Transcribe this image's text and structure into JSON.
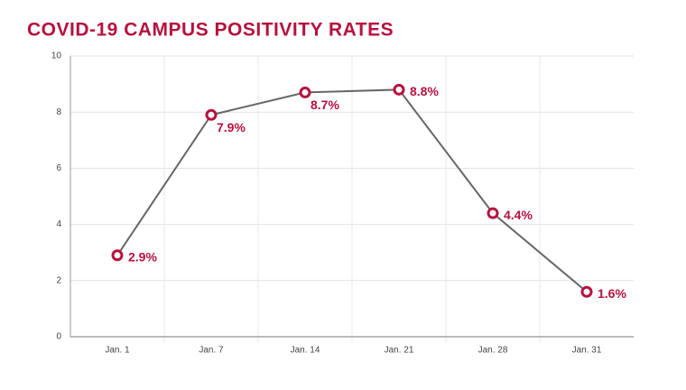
{
  "chart_data": {
    "type": "line",
    "title": "COVID-19 CAMPUS POSITIVITY RATES",
    "categories": [
      "Jan. 1",
      "Jan. 7",
      "Jan. 14",
      "Jan. 21",
      "Jan. 28",
      "Jan. 31"
    ],
    "series": [
      {
        "color": "#666666",
        "marker_color": "#b5123e",
        "values": [
          2.9,
          7.9,
          8.7,
          8.8,
          4.4,
          1.6
        ],
        "value_labels": [
          "2.9%",
          "7.9%",
          "8.7%",
          "8.8%",
          "4.4%",
          "1.6%"
        ]
      }
    ],
    "ylim": [
      0,
      10
    ],
    "yticks": [
      0,
      2,
      4,
      6,
      8,
      10
    ],
    "grid": true
  }
}
